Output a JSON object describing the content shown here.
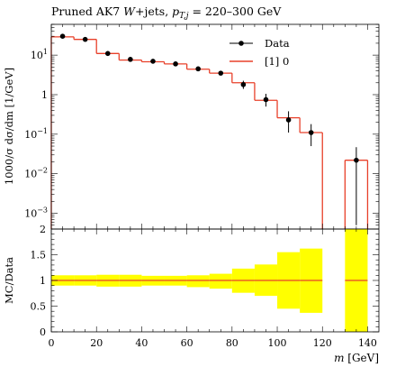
{
  "chart_data": {
    "type": "line",
    "title_prefix": "Pruned AK7 ",
    "title_math": "W",
    "title_mid": "+jets, ",
    "title_var": "p",
    "title_sub": "T,j",
    "title_range": " = 220–300 GeV",
    "ylabel_top": "1000/σ dσ/dm [1/GeV]",
    "ylabel_bottom": "MC/Data",
    "xlabel_var": "m",
    "xlabel_unit": " [GeV]",
    "legend": {
      "placement": "top-right",
      "data_label": "Data",
      "mc_label": "[1] 0"
    },
    "colors": {
      "mc": "#e8402a",
      "band": "#ffff00",
      "ratio_line": "#e8402a"
    },
    "x_range": [
      0,
      145
    ],
    "top_y_range_log": [
      0.0004,
      60
    ],
    "bottom_y_range": [
      0,
      2
    ],
    "x_ticks": [
      0,
      20,
      40,
      60,
      80,
      100,
      120,
      140
    ],
    "top_y_ticks": [
      {
        "value": 10,
        "label": "10",
        "sup": "1"
      },
      {
        "value": 1,
        "label": "1",
        "sup": ""
      },
      {
        "value": 0.1,
        "label": "10",
        "sup": "−1"
      },
      {
        "value": 0.01,
        "label": "10",
        "sup": "−2"
      },
      {
        "value": 0.001,
        "label": "10",
        "sup": "−3"
      }
    ],
    "bottom_y_ticks": [
      {
        "value": 0,
        "label": "0"
      },
      {
        "value": 0.5,
        "label": "0.5"
      },
      {
        "value": 1,
        "label": "1"
      },
      {
        "value": 1.5,
        "label": "1.5"
      },
      {
        "value": 2,
        "label": "2"
      }
    ],
    "bins": [
      {
        "lo": 0,
        "hi": 10,
        "data": 30,
        "err_lo": 2,
        "err_hi": 2,
        "mc": 29,
        "band_lo": 0.9,
        "band_hi": 1.1
      },
      {
        "lo": 10,
        "hi": 20,
        "data": 25,
        "err_lo": 2,
        "err_hi": 2,
        "mc": 25,
        "band_lo": 0.9,
        "band_hi": 1.1
      },
      {
        "lo": 20,
        "hi": 30,
        "data": 11,
        "err_lo": 1,
        "err_hi": 1,
        "mc": 11,
        "band_lo": 0.88,
        "band_hi": 1.11
      },
      {
        "lo": 30,
        "hi": 40,
        "data": 7.8,
        "err_lo": 0.6,
        "err_hi": 0.6,
        "mc": 7.5,
        "band_lo": 0.88,
        "band_hi": 1.11
      },
      {
        "lo": 40,
        "hi": 50,
        "data": 7,
        "err_lo": 0.6,
        "err_hi": 0.6,
        "mc": 6.8,
        "band_lo": 0.9,
        "band_hi": 1.09
      },
      {
        "lo": 50,
        "hi": 60,
        "data": 6,
        "err_lo": 0.5,
        "err_hi": 0.5,
        "mc": 6,
        "band_lo": 0.9,
        "band_hi": 1.09
      },
      {
        "lo": 60,
        "hi": 70,
        "data": 4.5,
        "err_lo": 0.4,
        "err_hi": 0.4,
        "mc": 4.4,
        "band_lo": 0.87,
        "band_hi": 1.1
      },
      {
        "lo": 70,
        "hi": 80,
        "data": 3.5,
        "err_lo": 0.3,
        "err_hi": 0.3,
        "mc": 3.5,
        "band_lo": 0.84,
        "band_hi": 1.13
      },
      {
        "lo": 80,
        "hi": 90,
        "data": 1.8,
        "err_lo": 0.4,
        "err_hi": 0.45,
        "mc": 2.0,
        "band_lo": 0.76,
        "band_hi": 1.23
      },
      {
        "lo": 90,
        "hi": 100,
        "data": 0.75,
        "err_lo": 0.25,
        "err_hi": 0.3,
        "mc": 0.72,
        "band_lo": 0.7,
        "band_hi": 1.31
      },
      {
        "lo": 100,
        "hi": 110,
        "data": 0.23,
        "err_lo": 0.12,
        "err_hi": 0.15,
        "mc": 0.26,
        "band_lo": 0.45,
        "band_hi": 1.55
      },
      {
        "lo": 110,
        "hi": 120,
        "data": 0.11,
        "err_lo": 0.06,
        "err_hi": 0.07,
        "mc": 0.11,
        "band_lo": 0.37,
        "band_hi": 1.62
      },
      {
        "lo": 130,
        "hi": 140,
        "data": 0.022,
        "err_lo": 0.0215,
        "err_hi": 0.025,
        "mc": 0.022,
        "band_lo": 0.0,
        "band_hi": 2.0
      }
    ]
  }
}
